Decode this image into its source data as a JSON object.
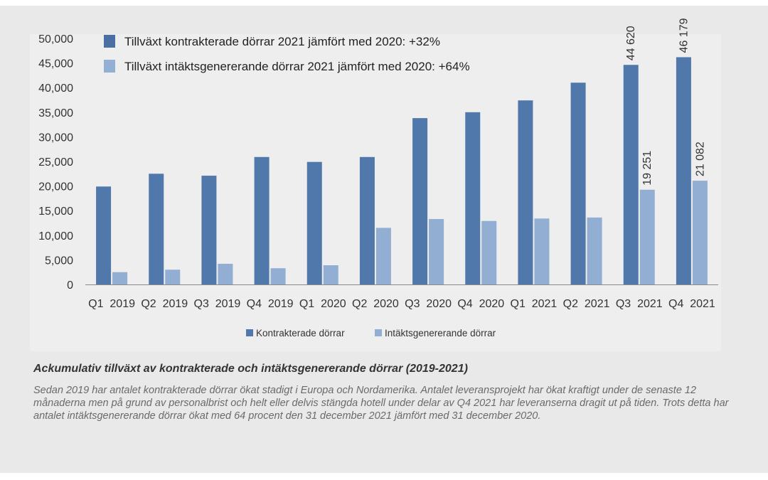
{
  "colors": {
    "series1": "#5078aa",
    "series2": "#92aed2",
    "legend_top1": "#4a6fa5",
    "legend_top2": "#93afd3"
  },
  "chart_data": {
    "type": "bar",
    "categories": [
      "Q1  2019",
      "Q2  2019",
      "Q3  2019",
      "Q4  2019",
      "Q1  2020",
      "Q2  2020",
      "Q3  2020",
      "Q4  2020",
      "Q1  2021",
      "Q2  2021",
      "Q3  2021",
      "Q4  2021"
    ],
    "series": [
      {
        "name": "Kontrakterade dörrar",
        "values": [
          19900,
          22500,
          22100,
          25900,
          24900,
          25900,
          33800,
          35000,
          37400,
          41000,
          44620,
          46179
        ],
        "labels": [
          "",
          "",
          "",
          "",
          "",
          "",
          "",
          "",
          "",
          "",
          "44 620",
          "46 179"
        ]
      },
      {
        "name": "Intäktsgenererande dörrar",
        "values": [
          2500,
          3000,
          4200,
          3300,
          3900,
          11500,
          13300,
          12900,
          13400,
          13600,
          19251,
          21082
        ],
        "labels": [
          "",
          "",
          "",
          "",
          "",
          "",
          "",
          "",
          "",
          "",
          "19 251",
          "21 082"
        ]
      }
    ],
    "ylim": [
      0,
      50000
    ],
    "yticks": [
      "0",
      "5,000",
      "10,000",
      "15,000",
      "20,000",
      "25,000",
      "30,000",
      "35,000",
      "40,000",
      "45,000",
      "50,000"
    ],
    "grid": false,
    "legend_position": "bottom",
    "top_legend": [
      "Tillväxt kontrakterade dörrar 2021 jämfört med 2020: +32%",
      "Tillväxt intäktsgenererande dörrar 2021 jämfört med 2020: +64%"
    ]
  },
  "caption": {
    "title": "Ackumulativ tillväxt av kontrakterade och intäktsgenererande dörrar (2019-2021)",
    "text": "Sedan 2019 har antalet kontrakterade dörrar ökat stadigt i Europa och Nordamerika. Antalet leveransprojekt har ökat kraftigt under de senaste 12 månaderna men på grund av personalbrist och helt eller delvis stängda hotell under delar av Q4 2021 har leveranserna dragit ut på tiden. Trots detta har antalet intäktsgenererande dörrar ökat med 64 procent den 31 december 2021 jämfört med 31 december 2020."
  }
}
